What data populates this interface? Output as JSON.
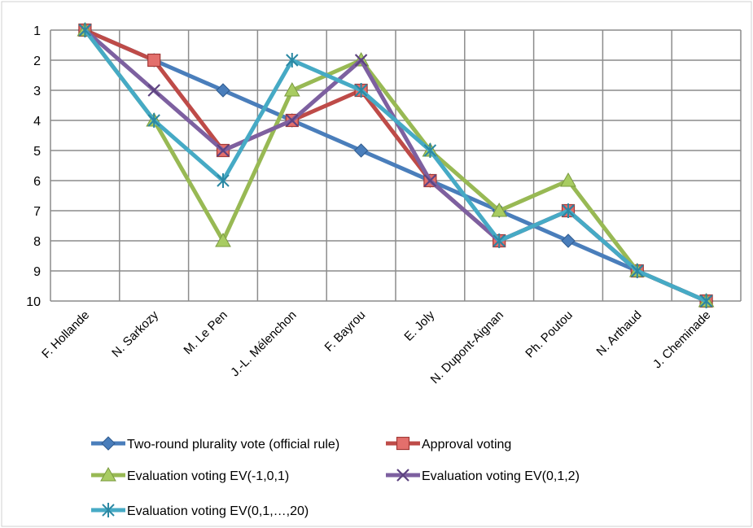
{
  "chart_data": {
    "type": "line",
    "categories": [
      "F. Hollande",
      "N. Sarkozy",
      "M. Le Pen",
      "J.-L. Mélenchon",
      "F. Bayrou",
      "E. Joly",
      "N. Dupont-Aignan",
      "Ph. Poutou",
      "N. Arthaud",
      "J. Cheminade"
    ],
    "yticks": [
      "1",
      "2",
      "3",
      "4",
      "5",
      "6",
      "7",
      "8",
      "9",
      "10"
    ],
    "ylim": [
      1,
      10
    ],
    "y_inverted": true,
    "grid": true,
    "legend_position": "bottom",
    "series": [
      {
        "name": "Two-round plurality vote (official rule)",
        "color": "#4a7ebb",
        "marker": "diamond",
        "values": [
          1,
          2,
          3,
          4,
          5,
          6,
          7,
          8,
          9,
          10
        ]
      },
      {
        "name": "Approval voting",
        "color": "#be4b48",
        "marker": "square",
        "values": [
          1,
          2,
          5,
          4,
          3,
          6,
          8,
          7,
          9,
          10
        ]
      },
      {
        "name": "Evaluation voting EV(-1,0,1)",
        "color": "#98b954",
        "marker": "triangle",
        "values": [
          1,
          4,
          8,
          3,
          2,
          5,
          7,
          6,
          9,
          10
        ]
      },
      {
        "name": "Evaluation voting EV(0,1,2)",
        "color": "#7d60a0",
        "marker": "x",
        "values": [
          1,
          3,
          5,
          4,
          2,
          6,
          8,
          7,
          9,
          10
        ]
      },
      {
        "name": "Evaluation voting EV(0,1,…,20)",
        "color": "#46aac5",
        "marker": "star",
        "values": [
          1,
          4,
          6,
          2,
          3,
          5,
          8,
          7,
          9,
          10
        ]
      }
    ]
  }
}
